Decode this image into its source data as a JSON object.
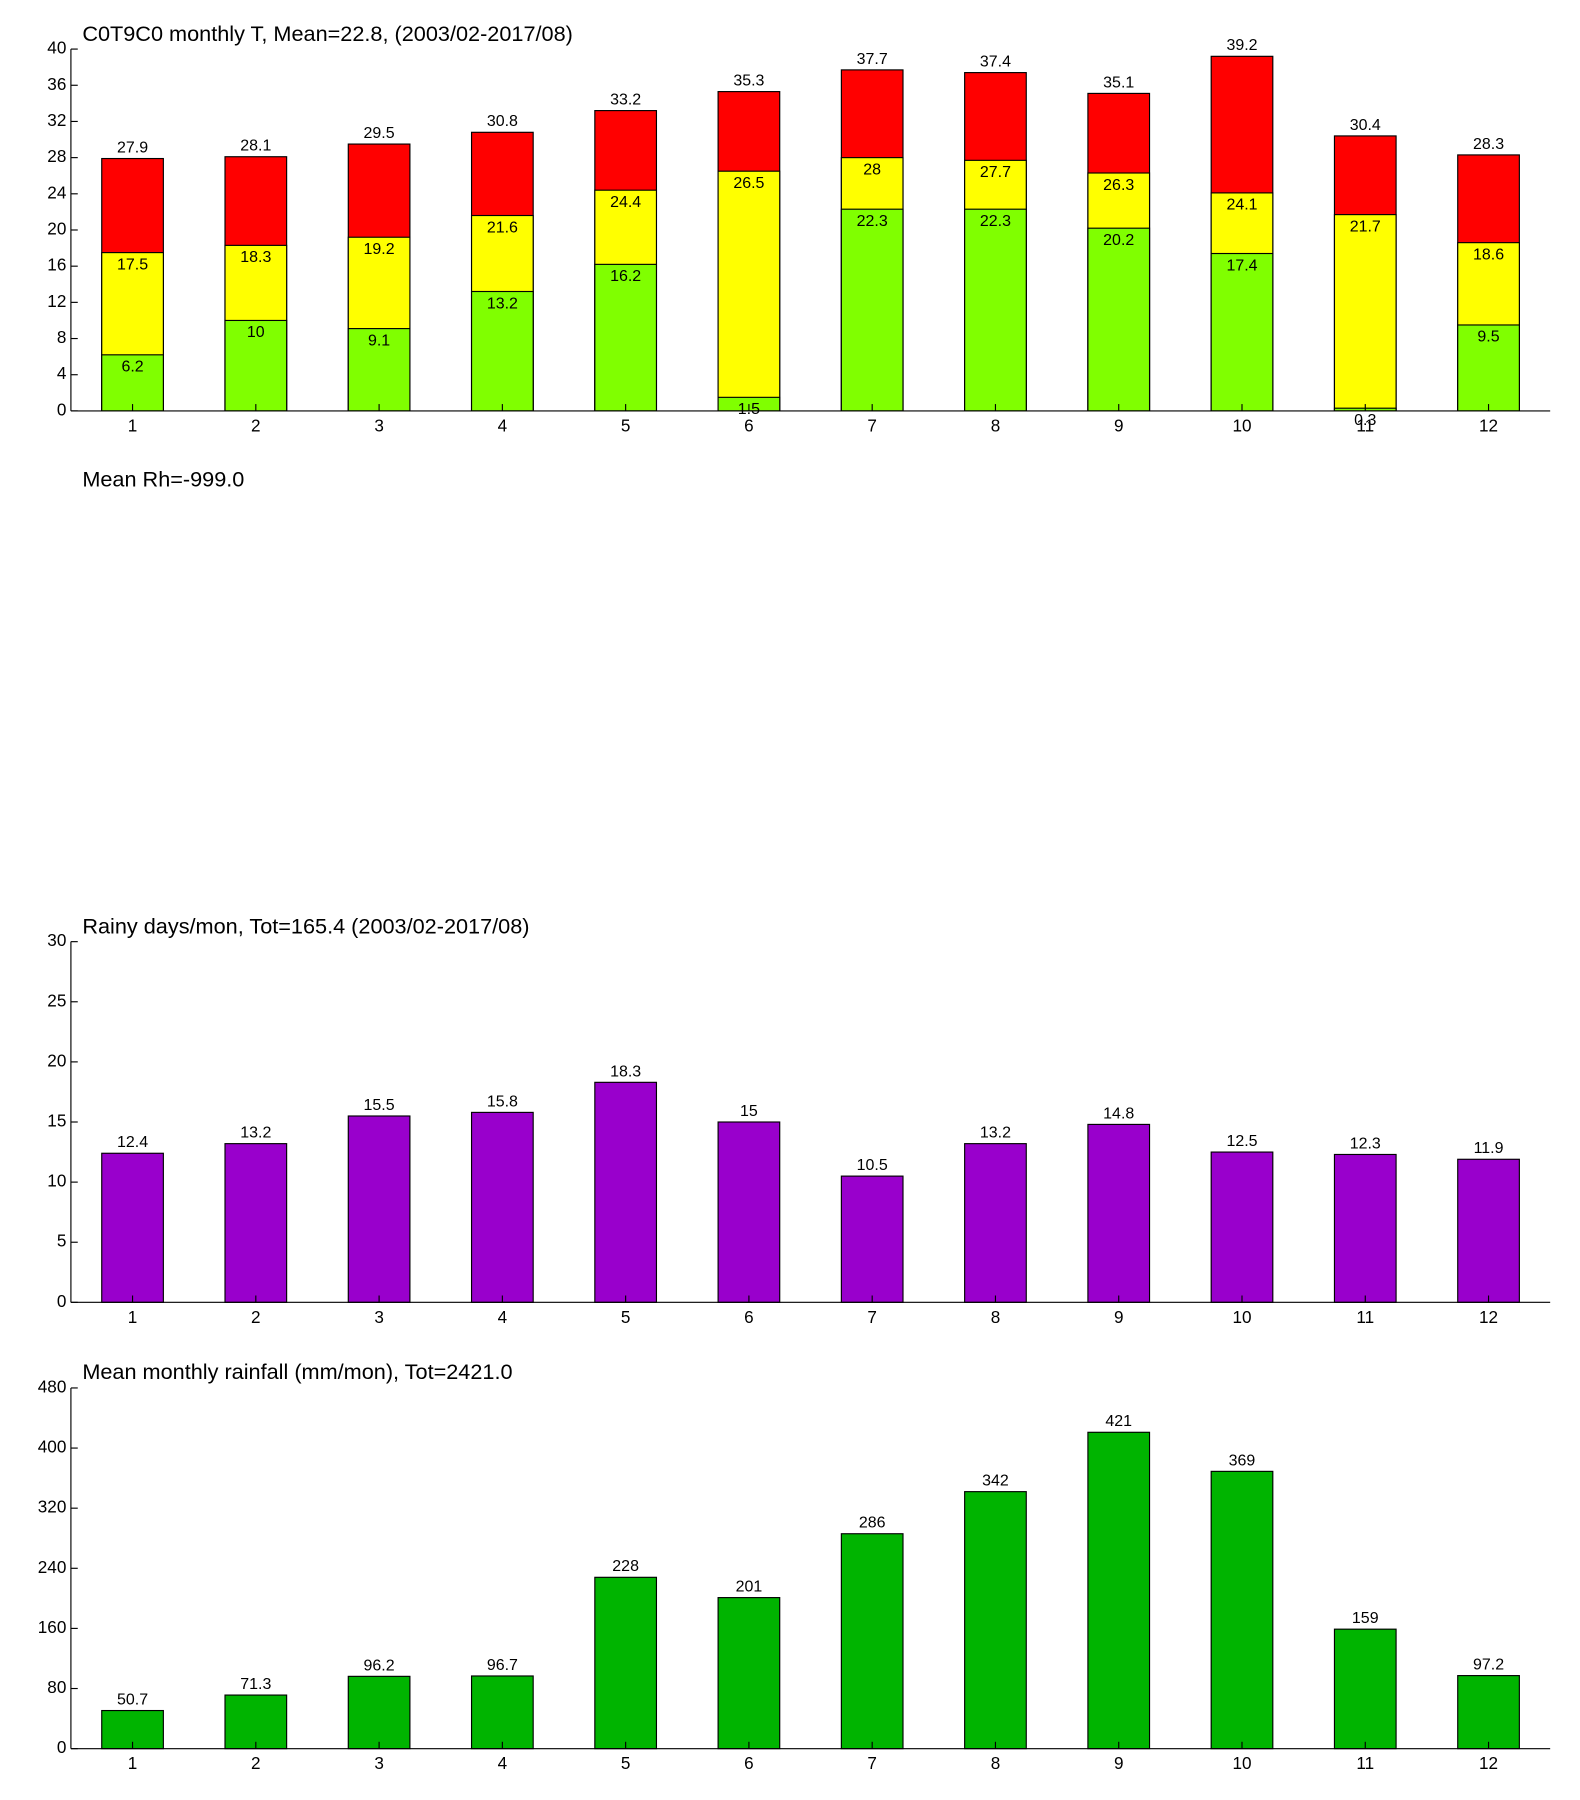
{
  "chart_data": [
    {
      "type": "bar",
      "title": "C0T9C0 monthly T, Mean=22.8, (2003/02-2017/08)",
      "categories": [
        "1",
        "2",
        "3",
        "4",
        "5",
        "6",
        "7",
        "8",
        "9",
        "10",
        "11",
        "12"
      ],
      "series": [
        {
          "color": "#ff0000",
          "values": [
            27.9,
            28.1,
            29.5,
            30.8,
            33.2,
            35.3,
            37.7,
            37.4,
            35.1,
            39.2,
            30.4,
            28.3
          ]
        },
        {
          "color": "#ffff00",
          "values": [
            17.5,
            18.3,
            19.2,
            21.6,
            24.4,
            26.5,
            28,
            27.7,
            26.3,
            24.1,
            21.7,
            18.6
          ]
        },
        {
          "color": "#80ff00",
          "values": [
            6.2,
            10,
            9.1,
            13.2,
            16.2,
            1.5,
            22.3,
            22.3,
            20.2,
            17.4,
            0.3,
            9.5
          ]
        }
      ],
      "ylim": [
        0,
        40
      ],
      "yticks": [
        0,
        4,
        8,
        12,
        16,
        20,
        24,
        28,
        32,
        36,
        40
      ]
    },
    {
      "type": "bar",
      "title": "Mean Rh=-999.0"
    },
    {
      "type": "bar",
      "title": "Rainy days/mon, Tot=165.4 (2003/02-2017/08)",
      "categories": [
        "1",
        "2",
        "3",
        "4",
        "5",
        "6",
        "7",
        "8",
        "9",
        "10",
        "11",
        "12"
      ],
      "series": [
        {
          "color": "#9900cc",
          "values": [
            12.4,
            13.2,
            15.5,
            15.8,
            18.3,
            15,
            10.5,
            13.2,
            14.8,
            12.5,
            12.3,
            11.9
          ]
        }
      ],
      "ylim": [
        0,
        30
      ],
      "yticks": [
        0,
        5,
        10,
        15,
        20,
        25,
        30
      ]
    },
    {
      "type": "bar",
      "title": "Mean monthly rainfall (mm/mon), Tot=2421.0",
      "categories": [
        "1",
        "2",
        "3",
        "4",
        "5",
        "6",
        "7",
        "8",
        "9",
        "10",
        "11",
        "12"
      ],
      "series": [
        {
          "color": "#00b400",
          "values": [
            50.7,
            71.3,
            96.2,
            96.7,
            228,
            201,
            286,
            342,
            421,
            369,
            159,
            97.2
          ]
        }
      ],
      "ylim": [
        0,
        480
      ],
      "yticks": [
        0,
        80,
        160,
        240,
        320,
        400,
        480
      ]
    }
  ]
}
